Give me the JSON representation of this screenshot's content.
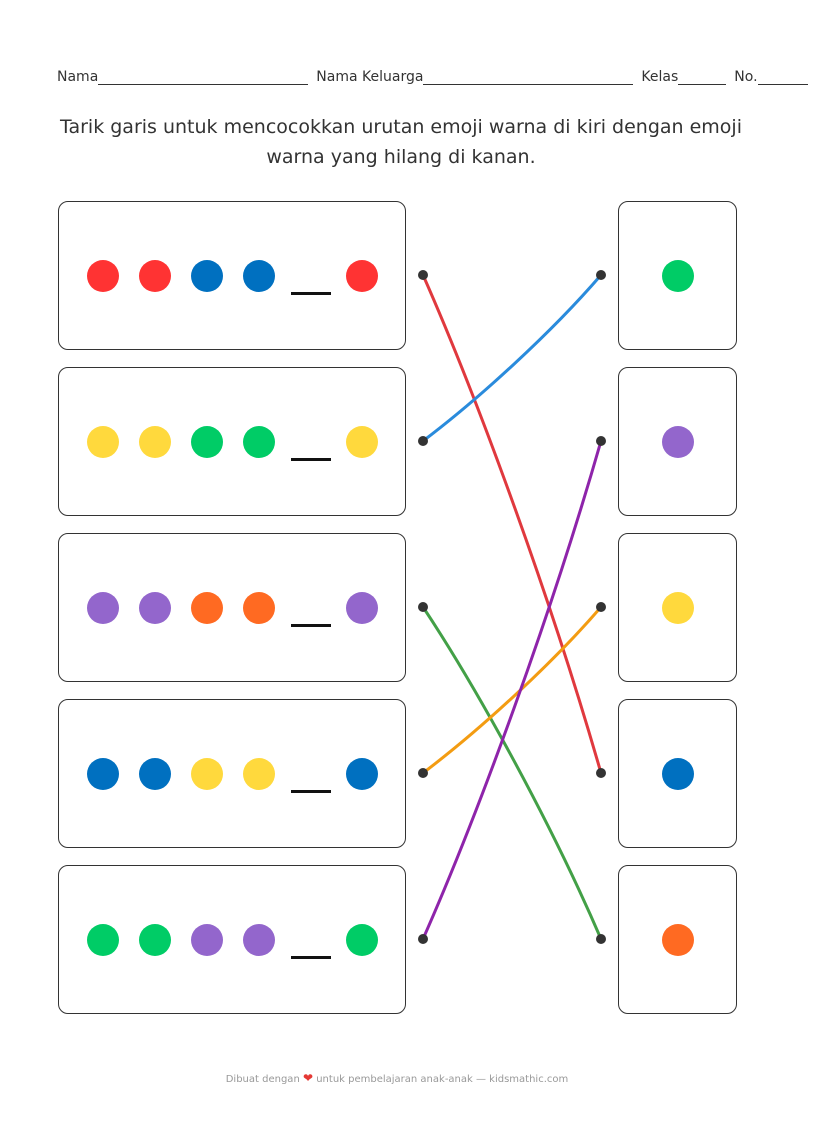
{
  "header": {
    "name_label": "Nama",
    "family_label": "Nama Keluarga",
    "class_label": "Kelas",
    "no_label": "No."
  },
  "instruction": "Tarik garis untuk mencocokkan urutan emoji warna di kiri dengan emoji warna yang hilang di kanan.",
  "colors": {
    "red": "#ff3333",
    "blue": "#0070c0",
    "yellow": "#ffd93d",
    "green": "#00cc66",
    "purple": "#9366cc",
    "orange": "#ff6a22"
  },
  "left_rows": [
    {
      "sequence": [
        "red",
        "red",
        "blue",
        "blue",
        "_",
        "red"
      ]
    },
    {
      "sequence": [
        "yellow",
        "yellow",
        "green",
        "green",
        "_",
        "yellow"
      ]
    },
    {
      "sequence": [
        "purple",
        "purple",
        "orange",
        "orange",
        "_",
        "purple"
      ]
    },
    {
      "sequence": [
        "blue",
        "blue",
        "yellow",
        "yellow",
        "_",
        "blue"
      ]
    },
    {
      "sequence": [
        "green",
        "green",
        "purple",
        "purple",
        "_",
        "green"
      ]
    }
  ],
  "right_answers": [
    "green",
    "purple",
    "yellow",
    "blue",
    "orange"
  ],
  "connections": [
    {
      "from": 0,
      "to": 3,
      "color": "#e0393e"
    },
    {
      "from": 1,
      "to": 0,
      "color": "#2a8bdc"
    },
    {
      "from": 2,
      "to": 4,
      "color": "#43a047"
    },
    {
      "from": 3,
      "to": 2,
      "color": "#f39c12"
    },
    {
      "from": 4,
      "to": 1,
      "color": "#8e24aa"
    }
  ],
  "footer": {
    "before": "Dibuat dengan",
    "heart_icon": "heart-icon",
    "after": "untuk pembelajaran anak-anak — kidsmathic.com"
  }
}
